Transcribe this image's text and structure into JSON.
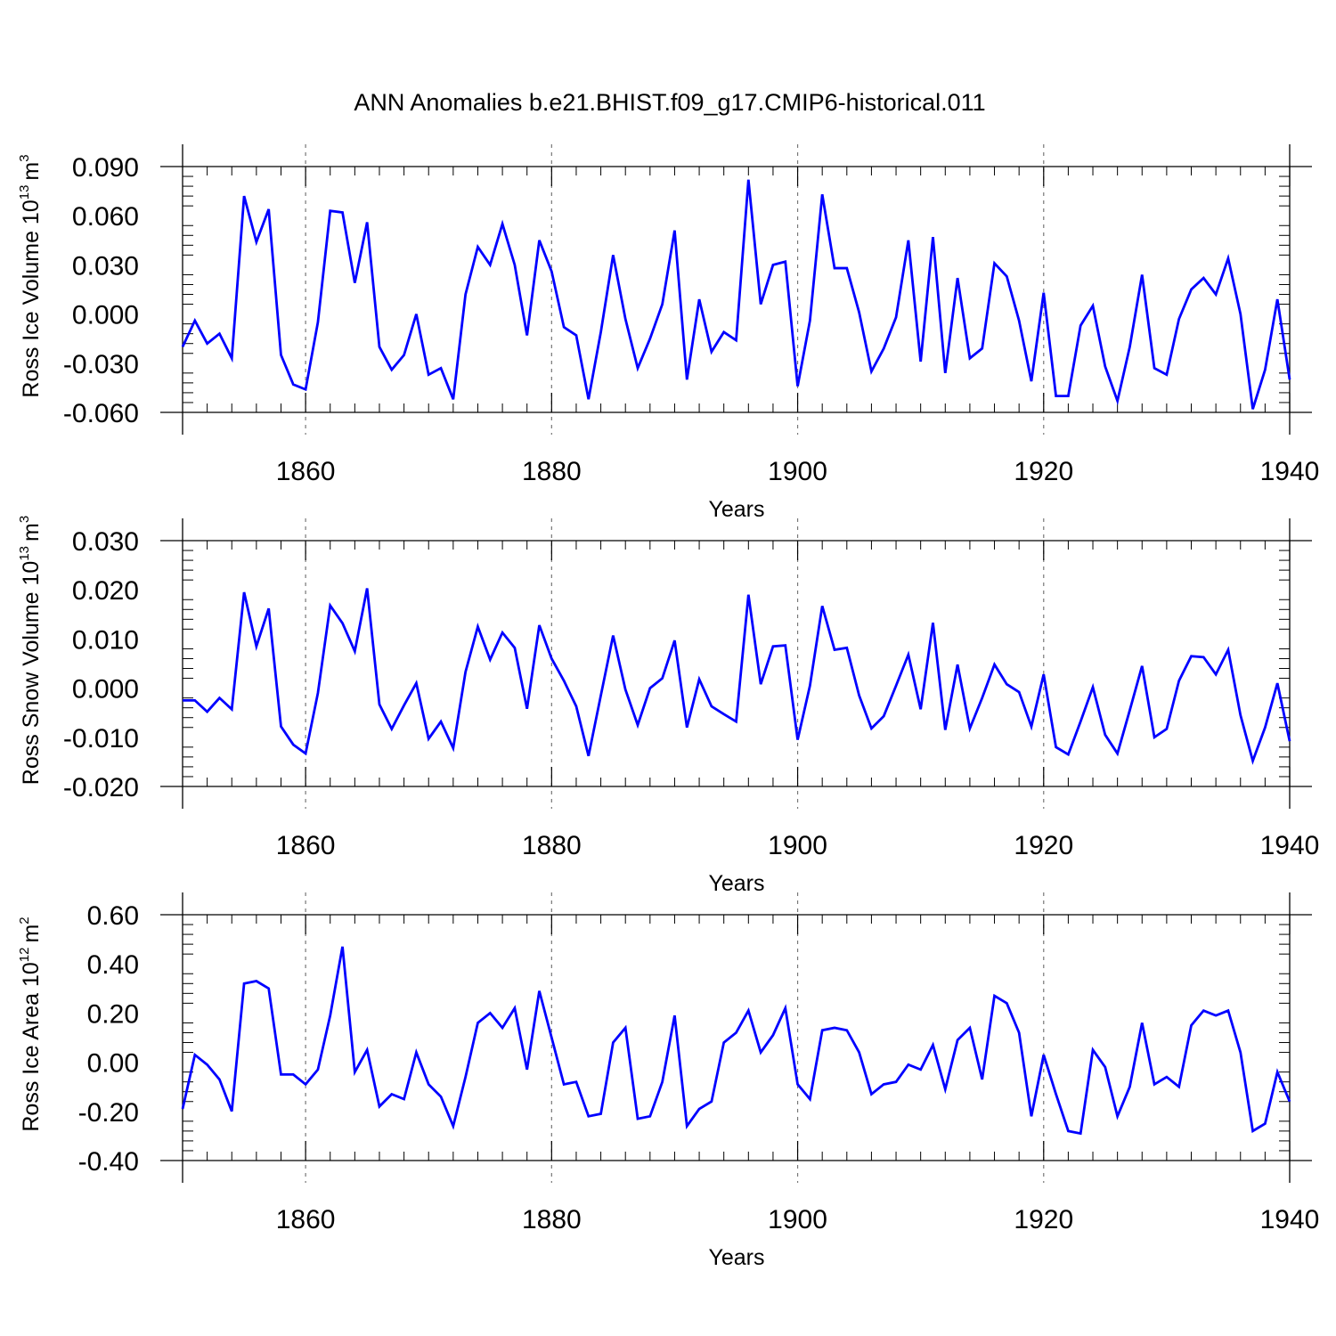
{
  "title": "ANN Anomalies b.e21.BHIST.f09_g17.CMIP6-historical.011",
  "colors": {
    "line": "#0000ff",
    "axis": "#000000",
    "grid": "#777777"
  },
  "chart_data": [
    {
      "type": "line",
      "ylabel": "Ross Ice Volume",
      "yunit_base": "10",
      "yunit_exp": "13",
      "yunit": "m",
      "yunit_power": "3",
      "xlabel": "Years",
      "xlim": [
        1850,
        1940
      ],
      "ylim": [
        -0.06,
        0.09
      ],
      "yticks": [
        -0.06,
        -0.03,
        0.0,
        0.03,
        0.06,
        0.09
      ],
      "ytick_labels": [
        "-0.060",
        "-0.030",
        "0.000",
        "0.030",
        "0.060",
        "0.090"
      ],
      "xticks": [
        1860,
        1880,
        1900,
        1920,
        1940
      ],
      "xtick_labels": [
        "1860",
        "1880",
        "1900",
        "1920",
        "1940"
      ],
      "x_start": 1850,
      "values": [
        -0.02,
        -0.004,
        -0.018,
        -0.012,
        -0.027,
        0.072,
        0.044,
        0.064,
        -0.025,
        -0.043,
        -0.046,
        -0.005,
        0.063,
        0.062,
        0.019,
        0.056,
        -0.02,
        -0.034,
        -0.025,
        0.0,
        -0.037,
        -0.033,
        -0.052,
        0.012,
        0.041,
        0.03,
        0.055,
        0.03,
        -0.013,
        0.045,
        0.026,
        -0.008,
        -0.013,
        -0.052,
        -0.011,
        0.036,
        -0.003,
        -0.033,
        -0.015,
        0.006,
        0.051,
        -0.04,
        0.009,
        -0.023,
        -0.011,
        -0.016,
        0.082,
        0.006,
        0.03,
        0.032,
        -0.044,
        -0.004,
        0.073,
        0.028,
        0.028,
        0.001,
        -0.035,
        -0.021,
        -0.002,
        0.045,
        -0.029,
        0.047,
        -0.036,
        0.022,
        -0.027,
        -0.021,
        0.031,
        0.023,
        -0.004,
        -0.041,
        0.013,
        -0.05,
        -0.05,
        -0.007,
        0.005,
        -0.032,
        -0.053,
        -0.02,
        0.024,
        -0.033,
        -0.037,
        -0.003,
        0.015,
        0.022,
        0.012,
        0.034,
        0.0,
        -0.058,
        -0.034,
        0.009,
        -0.04
      ]
    },
    {
      "type": "line",
      "ylabel": "Ross Snow Volume",
      "yunit_base": "10",
      "yunit_exp": "13",
      "yunit": "m",
      "yunit_power": "3",
      "xlabel": "Years",
      "xlim": [
        1850,
        1940
      ],
      "ylim": [
        -0.02,
        0.03
      ],
      "yticks": [
        -0.02,
        -0.01,
        0.0,
        0.01,
        0.02,
        0.03
      ],
      "ytick_labels": [
        "-0.020",
        "-0.010",
        "0.000",
        "0.010",
        "0.020",
        "0.030"
      ],
      "xticks": [
        1860,
        1880,
        1900,
        1920,
        1940
      ],
      "xtick_labels": [
        "1860",
        "1880",
        "1900",
        "1920",
        "1940"
      ],
      "x_start": 1850,
      "values": [
        -0.0025,
        -0.0025,
        -0.0048,
        -0.002,
        -0.0043,
        0.0195,
        0.0085,
        0.0162,
        -0.0078,
        -0.0115,
        -0.0133,
        -0.001,
        0.0168,
        0.0132,
        0.0075,
        0.0203,
        -0.0033,
        -0.0083,
        -0.0035,
        0.001,
        -0.0103,
        -0.0068,
        -0.0122,
        0.0033,
        0.0125,
        0.0058,
        0.0113,
        0.0082,
        -0.0042,
        0.0128,
        0.006,
        0.0015,
        -0.0037,
        -0.0138,
        -0.0015,
        0.0107,
        -0.0003,
        -0.0075,
        0.0,
        0.002,
        0.0097,
        -0.008,
        0.0018,
        -0.0037,
        -0.0053,
        -0.0068,
        0.019,
        0.0008,
        0.0085,
        0.0087,
        -0.0105,
        0.0005,
        0.0167,
        0.0078,
        0.0082,
        -0.0015,
        -0.0082,
        -0.0057,
        0.0005,
        0.0068,
        -0.0043,
        0.0133,
        -0.0085,
        0.0048,
        -0.0082,
        -0.002,
        0.0048,
        0.0008,
        -0.0008,
        -0.0078,
        0.0028,
        -0.012,
        -0.0135,
        -0.0068,
        0.0002,
        -0.0095,
        -0.0133,
        -0.0045,
        0.0045,
        -0.01,
        -0.0083,
        0.0015,
        0.0065,
        0.0063,
        0.0028,
        0.0078,
        -0.0055,
        -0.0148,
        -0.008,
        0.001,
        -0.0108
      ]
    },
    {
      "type": "line",
      "ylabel": "Ross Ice Area",
      "yunit_base": "10",
      "yunit_exp": "12",
      "yunit": "m",
      "yunit_power": "2",
      "xlabel": "Years",
      "xlim": [
        1850,
        1940
      ],
      "ylim": [
        -0.4,
        0.6
      ],
      "yticks": [
        -0.4,
        -0.2,
        0.0,
        0.2,
        0.4,
        0.6
      ],
      "ytick_labels": [
        "-0.40",
        "-0.20",
        "0.00",
        "0.20",
        "0.40",
        "0.60"
      ],
      "xticks": [
        1860,
        1880,
        1900,
        1920,
        1940
      ],
      "xtick_labels": [
        "1860",
        "1880",
        "1900",
        "1920",
        "1940"
      ],
      "x_start": 1850,
      "values": [
        -0.19,
        0.03,
        -0.01,
        -0.07,
        -0.2,
        0.32,
        0.33,
        0.3,
        -0.05,
        -0.05,
        -0.09,
        -0.03,
        0.19,
        0.47,
        -0.04,
        0.05,
        -0.18,
        -0.13,
        -0.15,
        0.04,
        -0.09,
        -0.14,
        -0.26,
        -0.06,
        0.16,
        0.2,
        0.14,
        0.22,
        -0.03,
        0.29,
        0.1,
        -0.09,
        -0.08,
        -0.22,
        -0.21,
        0.08,
        0.14,
        -0.23,
        -0.22,
        -0.08,
        0.19,
        -0.26,
        -0.19,
        -0.16,
        0.08,
        0.12,
        0.21,
        0.04,
        0.11,
        0.22,
        -0.09,
        -0.15,
        0.13,
        0.14,
        0.13,
        0.04,
        -0.13,
        -0.09,
        -0.08,
        -0.01,
        -0.03,
        0.07,
        -0.11,
        0.09,
        0.14,
        -0.07,
        0.27,
        0.24,
        0.12,
        -0.22,
        0.03,
        -0.13,
        -0.28,
        -0.29,
        0.05,
        -0.02,
        -0.22,
        -0.1,
        0.16,
        -0.09,
        -0.06,
        -0.1,
        0.15,
        0.21,
        0.19,
        0.21,
        0.04,
        -0.28,
        -0.25,
        -0.04,
        -0.16
      ]
    }
  ]
}
